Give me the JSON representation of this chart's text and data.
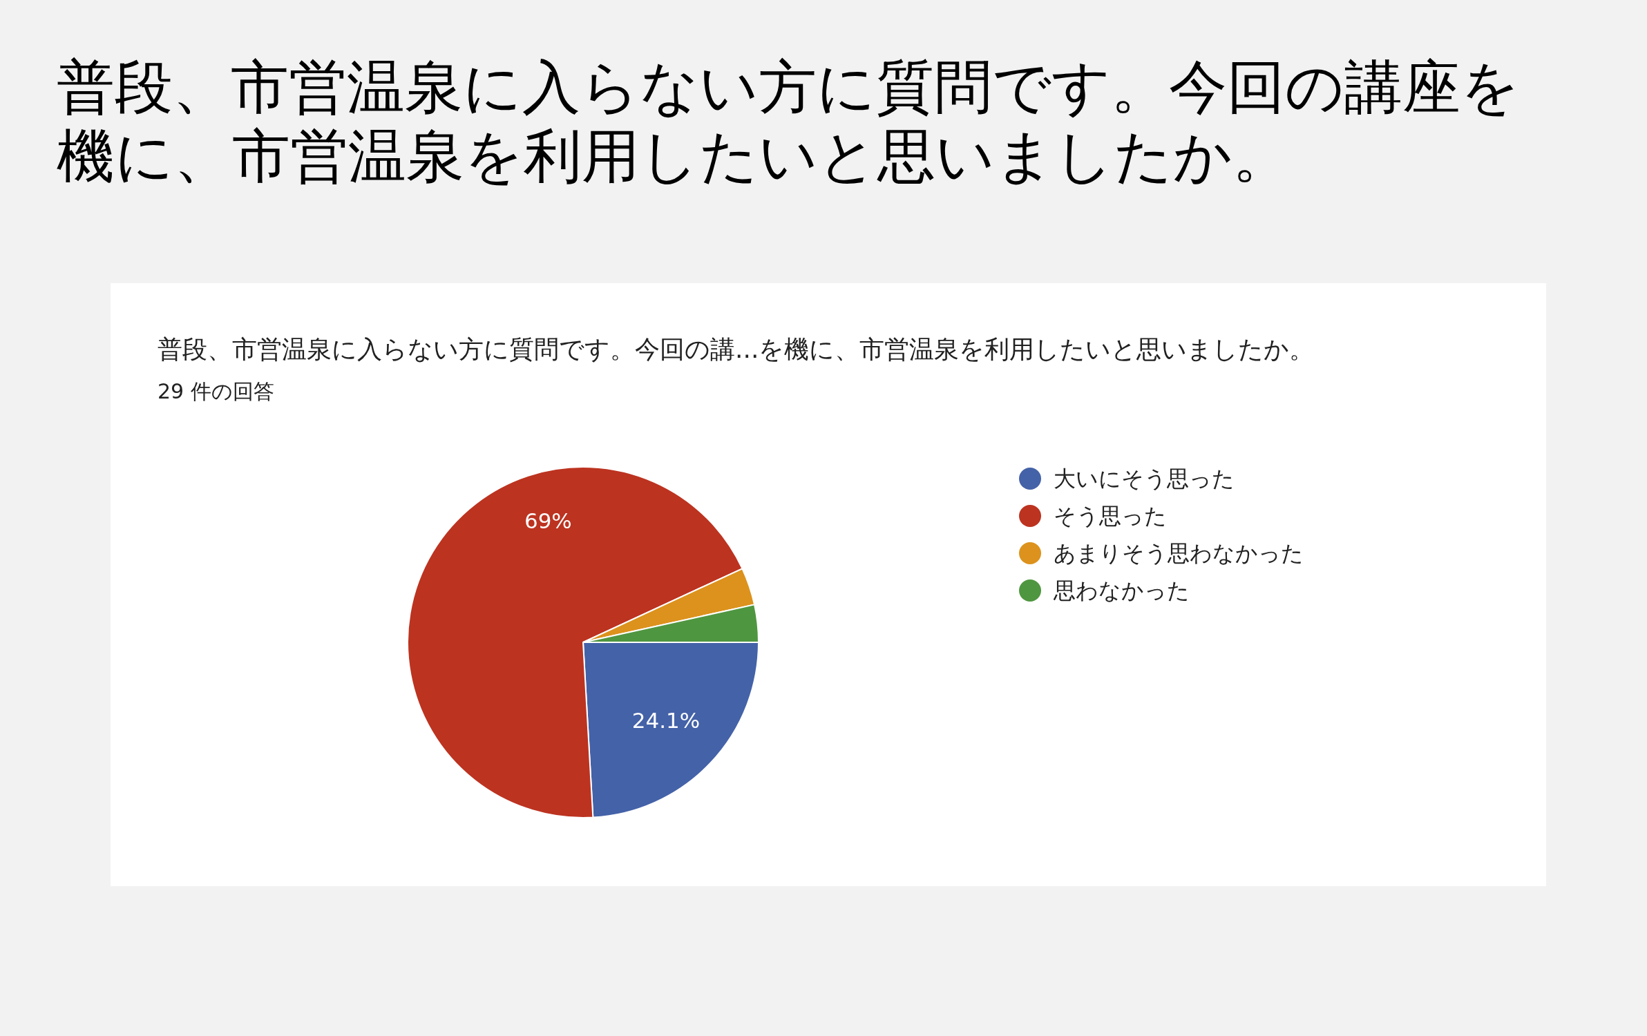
{
  "chart_data": {
    "type": "pie",
    "title": "普段、市営温泉に入らない方に質問です。今回の講座を機に、市営温泉を利用したいと思いましたか。",
    "subtitle": "普段、市営温泉に入らない方に質問です。今回の講...を機に、市営温泉を利用したいと思いましたか。",
    "annotations": [
      "29 件の回答"
    ],
    "categories": [
      "大いにそう思った",
      "そう思った",
      "あまりそう思わなかった",
      "思わなかった"
    ],
    "values": [
      24.1,
      69,
      3.45,
      3.45
    ],
    "colors": [
      "#4462a8",
      "#bc3320",
      "#dc921c",
      "#4f9640"
    ],
    "value_labels": [
      "24.1%",
      "69%",
      null,
      null
    ],
    "legend": "right"
  }
}
